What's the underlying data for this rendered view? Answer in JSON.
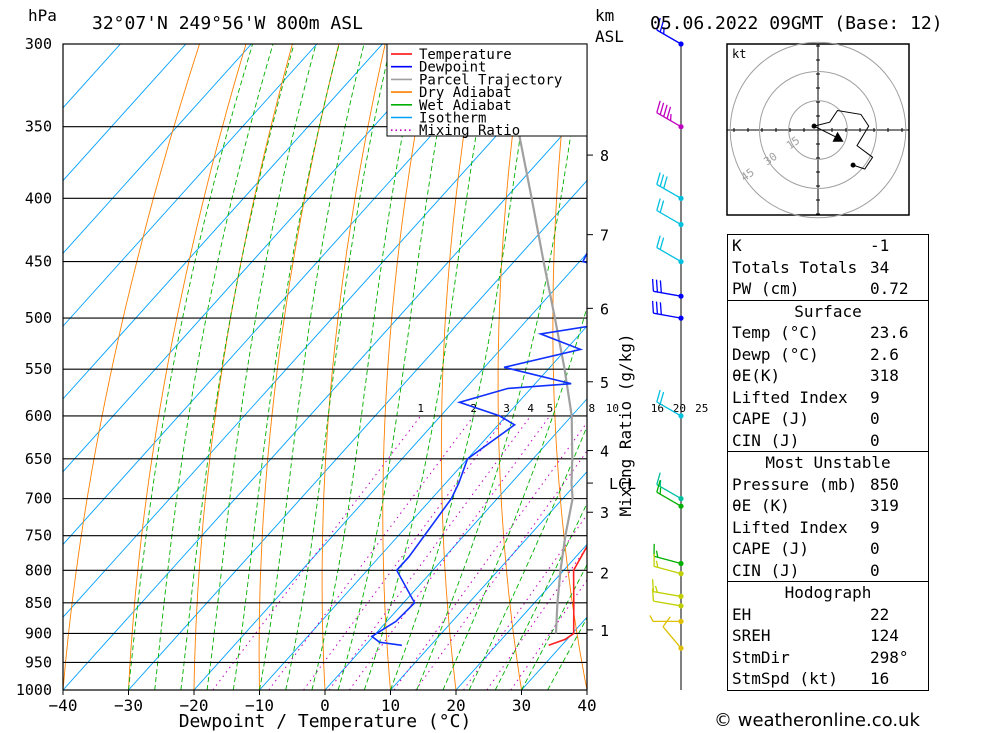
{
  "header": {
    "unit_left": "hPa",
    "location": "32°07'N 249°56'W 800m ASL",
    "unit_km": "km",
    "unit_asl": "ASL",
    "datetime": "05.06.2022 09GMT (Base: 12)"
  },
  "chart_data": {
    "type": "skew-t",
    "xlabel": "Dewpoint / Temperature (°C)",
    "x_ticks": [
      -40,
      -30,
      -20,
      -10,
      0,
      10,
      20,
      30,
      40
    ],
    "x_range": [
      -40,
      40
    ],
    "pressure_levels": [
      300,
      350,
      400,
      450,
      500,
      550,
      600,
      650,
      700,
      750,
      800,
      850,
      900,
      950,
      1000
    ],
    "pressure_range": [
      1000,
      300
    ],
    "mixing_ratio_label": "Mixing Ratio (g/kg)",
    "mixing_ratio_values": [
      "1",
      "2",
      "3",
      "4",
      "5",
      "8",
      "10",
      "16",
      "20",
      "25"
    ],
    "lcl_label": "LCL",
    "altitude_km": [
      {
        "km": "8",
        "p": 369
      },
      {
        "km": "7",
        "p": 428
      },
      {
        "km": "6",
        "p": 491
      },
      {
        "km": "5",
        "p": 563
      },
      {
        "km": "4",
        "p": 640
      },
      {
        "km": "3",
        "p": 718
      },
      {
        "km": "2",
        "p": 803
      },
      {
        "km": "1",
        "p": 894
      }
    ],
    "legend": [
      {
        "label": "Temperature",
        "color": "#ff0000"
      },
      {
        "label": "Dewpoint",
        "color": "#0000ff"
      },
      {
        "label": "Parcel Trajectory",
        "color": "#a0a0a0"
      },
      {
        "label": "Dry Adiabat",
        "color": "#ff8000"
      },
      {
        "label": "Wet Adiabat",
        "color": "#00b000"
      },
      {
        "label": "Isotherm",
        "color": "#00a0ff"
      },
      {
        "label": "Mixing Ratio",
        "color": "#c000c0"
      }
    ],
    "temperature": [
      [
        920,
        28.0
      ],
      [
        910,
        29.7
      ],
      [
        900,
        30.2
      ],
      [
        850,
        26.0
      ],
      [
        800,
        21.5
      ],
      [
        750,
        19.7
      ],
      [
        700,
        15.5
      ],
      [
        650,
        13.0
      ],
      [
        600,
        9.5
      ],
      [
        550,
        6.5
      ],
      [
        500,
        3.0
      ],
      [
        470,
        0.0
      ],
      [
        450,
        -1.5
      ],
      [
        400,
        -6.5
      ],
      [
        350,
        -11.5
      ],
      [
        300,
        -14.8
      ]
    ],
    "dewpoint": [
      [
        920,
        5.6
      ],
      [
        915,
        1.8
      ],
      [
        905,
        -0.2
      ],
      [
        880,
        1.4
      ],
      [
        850,
        1.7
      ],
      [
        800,
        -5.5
      ],
      [
        780,
        -5.5
      ],
      [
        700,
        -7.0
      ],
      [
        680,
        -8.0
      ],
      [
        650,
        -10.0
      ],
      [
        610,
        -7.5
      ],
      [
        600,
        -11.0
      ],
      [
        585,
        -19.0
      ],
      [
        570,
        -13.5
      ],
      [
        565,
        -4.5
      ],
      [
        548,
        -17.0
      ],
      [
        530,
        -7.8
      ],
      [
        515,
        -16.0
      ],
      [
        500,
        -3.0
      ],
      [
        470,
        -3.5
      ],
      [
        460,
        -11.0
      ],
      [
        450,
        -19.5
      ],
      [
        430,
        -21.0
      ],
      [
        410,
        -20.5
      ],
      [
        380,
        -9.0
      ],
      [
        365,
        -10.0
      ],
      [
        350,
        -6.0
      ],
      [
        345,
        -2.2
      ],
      [
        340,
        -2.0
      ],
      [
        335,
        -6.0
      ],
      [
        330,
        -3.0
      ],
      [
        320,
        -3.5
      ],
      [
        300,
        -9.0
      ]
    ],
    "parcel": [
      [
        900,
        27.5
      ],
      [
        850,
        23.5
      ],
      [
        800,
        19.5
      ],
      [
        750,
        15.5
      ],
      [
        700,
        11.5
      ],
      [
        680,
        9.2
      ],
      [
        650,
        6.0
      ],
      [
        600,
        0.0
      ],
      [
        550,
        -7.5
      ],
      [
        500,
        -16.0
      ],
      [
        450,
        -25.5
      ],
      [
        400,
        -36.0
      ],
      [
        350,
        -48.0
      ],
      [
        300,
        -61.0
      ]
    ],
    "winds": [
      {
        "p": 300,
        "dir": 300,
        "spd": 25,
        "color": "#0000ff"
      },
      {
        "p": 350,
        "dir": 300,
        "spd": 45,
        "color": "#c000c0"
      },
      {
        "p": 400,
        "dir": 300,
        "spd": 30,
        "color": "#00c0e0"
      },
      {
        "p": 420,
        "dir": 300,
        "spd": 20,
        "color": "#00c0e0"
      },
      {
        "p": 450,
        "dir": 300,
        "spd": 20,
        "color": "#00c0e0"
      },
      {
        "p": 480,
        "dir": 280,
        "spd": 30,
        "color": "#0000ff"
      },
      {
        "p": 500,
        "dir": 280,
        "spd": 30,
        "color": "#0000ff"
      },
      {
        "p": 600,
        "dir": 300,
        "spd": 20,
        "color": "#00c0e0"
      },
      {
        "p": 700,
        "dir": 300,
        "spd": 15,
        "color": "#00c0a0"
      },
      {
        "p": 710,
        "dir": 300,
        "spd": 15,
        "color": "#00b000"
      },
      {
        "p": 790,
        "dir": 285,
        "spd": 15,
        "color": "#00b000"
      },
      {
        "p": 805,
        "dir": 285,
        "spd": 15,
        "color": "#c0d000"
      },
      {
        "p": 840,
        "dir": 280,
        "spd": 15,
        "color": "#c0d000"
      },
      {
        "p": 855,
        "dir": 280,
        "spd": 10,
        "color": "#c0d000"
      },
      {
        "p": 880,
        "dir": 270,
        "spd": 5,
        "color": "#e0c000"
      },
      {
        "p": 925,
        "dir": 320,
        "spd": 10,
        "color": "#e0c000"
      }
    ]
  },
  "hodograph": {
    "unit": "kt",
    "rings": [
      "15",
      "30",
      "45"
    ],
    "path": [
      [
        -2,
        2
      ],
      [
        6,
        4
      ],
      [
        10,
        10
      ],
      [
        22,
        8
      ],
      [
        26,
        2
      ],
      [
        20,
        -8
      ],
      [
        28,
        -14
      ],
      [
        24,
        -20
      ],
      [
        18,
        -18
      ]
    ],
    "storm_motion": [
      10,
      -4
    ]
  },
  "indices": {
    "rows": [
      {
        "label": "K",
        "value": "-1"
      },
      {
        "label": "Totals Totals",
        "value": "34"
      },
      {
        "label": "PW (cm)",
        "value": "0.72"
      }
    ]
  },
  "surface": {
    "title": "Surface",
    "rows": [
      {
        "label": "Temp (°C)",
        "value": "23.6"
      },
      {
        "label": "Dewp (°C)",
        "value": "2.6"
      },
      {
        "label": "θE(K)",
        "value": "318"
      },
      {
        "label": "Lifted Index",
        "value": "9"
      },
      {
        "label": "CAPE (J)",
        "value": "0"
      },
      {
        "label": "CIN (J)",
        "value": "0"
      }
    ]
  },
  "most_unstable": {
    "title": "Most Unstable",
    "rows": [
      {
        "label": "Pressure (mb)",
        "value": "850"
      },
      {
        "label": "θE (K)",
        "value": "319"
      },
      {
        "label": "Lifted Index",
        "value": "9"
      },
      {
        "label": "CAPE (J)",
        "value": "0"
      },
      {
        "label": "CIN (J)",
        "value": "0"
      }
    ]
  },
  "hodo_stats": {
    "title": "Hodograph",
    "rows": [
      {
        "label": "EH",
        "value": "22"
      },
      {
        "label": "SREH",
        "value": "124"
      },
      {
        "label": "StmDir",
        "value": "298°"
      },
      {
        "label": "StmSpd (kt)",
        "value": "16"
      }
    ]
  },
  "footer": {
    "copyright": "© weatheronline.co.uk"
  }
}
